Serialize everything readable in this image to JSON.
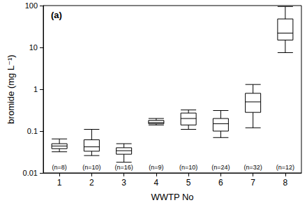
{
  "chart_data": {
    "type": "boxplot",
    "title": "(a)",
    "x_label": "WWTP No",
    "y_label": "bromide (mg L⁻¹)",
    "categories": [
      "1",
      "2",
      "3",
      "4",
      "5",
      "6",
      "7",
      "8"
    ],
    "values": [
      [
        0.032,
        0.038,
        0.044,
        0.05,
        0.065
      ],
      [
        0.026,
        0.033,
        0.042,
        0.062,
        0.11
      ],
      [
        0.018,
        0.028,
        0.034,
        0.04,
        0.05
      ],
      [
        0.14,
        0.15,
        0.16,
        0.18,
        0.2
      ],
      [
        0.11,
        0.14,
        0.2,
        0.27,
        0.32
      ],
      [
        0.07,
        0.1,
        0.15,
        0.2,
        0.31
      ],
      [
        0.12,
        0.28,
        0.5,
        0.8,
        1.3
      ],
      [
        7.5,
        15,
        22,
        48,
        95
      ]
    ],
    "n_labels": [
      "(n=8)",
      "(n=10)",
      "(n=16)",
      "(n=9)",
      "(n=10)",
      "(n=24)",
      "(n=32)",
      "(n=12)"
    ],
    "color": "#000000",
    "log": "y",
    "grid": false,
    "ylim": [
      0.01,
      100
    ],
    "yticks": [
      0.01,
      0.1,
      1,
      10,
      100
    ]
  }
}
